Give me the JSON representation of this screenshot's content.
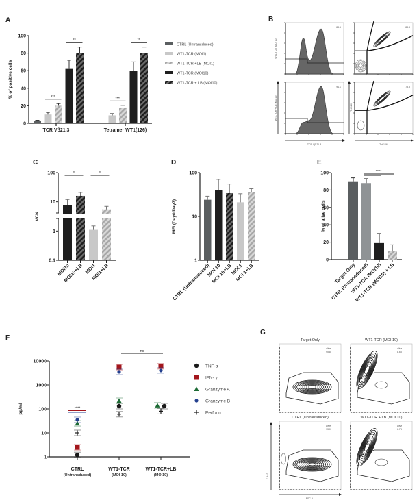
{
  "panels": {
    "A": "A",
    "B": "B",
    "C": "C",
    "D": "D",
    "E": "E",
    "F": "F",
    "G": "G"
  },
  "colors": {
    "ctrl": "#5a5e60",
    "moi1": "#c8c8c8",
    "moi1lb": "#b4b4b4",
    "moi10": "#1e1e1e",
    "tnf": "#1a1a1a",
    "ifn": "#a3161c",
    "gzma": "#1d6b35",
    "gzmb": "#24408f",
    "perforin": "#1a1a1a",
    "gray_e": "#8f9395"
  },
  "chart_data": [
    {
      "id": "A",
      "type": "bar",
      "ylabel": "% of positive cells",
      "ylim": [
        0,
        100
      ],
      "yticks": [
        0,
        20,
        40,
        60,
        80,
        100
      ],
      "categories": [
        "TCR Vβ21.3",
        "Tetramer WT1(126)"
      ],
      "legend": [
        "CTRL (Untransduced)",
        "WT1-TCR (MOI1)",
        "WT1-TCR +LB (MOI1)",
        "WT1-TCR (MOI10)",
        "WT1-TCR + LB (MOI10)"
      ],
      "legend_position": "right",
      "series": [
        {
          "name": "CTRL (Untransduced)",
          "values": [
            3,
            null
          ],
          "errors": [
            0.5,
            null
          ],
          "style": "ctrl"
        },
        {
          "name": "WT1-TCR (MOI1)",
          "values": [
            10,
            9
          ],
          "errors": [
            2.5,
            2
          ],
          "style": "moi1"
        },
        {
          "name": "WT1-TCR +LB (MOI1)",
          "values": [
            20,
            18
          ],
          "errors": [
            2.5,
            2.5
          ],
          "style": "moi1lb-hatch"
        },
        {
          "name": "WT1-TCR (MOI10)",
          "values": [
            62,
            60
          ],
          "errors": [
            10,
            10
          ],
          "style": "moi10"
        },
        {
          "name": "WT1-TCR + LB (MOI10)",
          "values": [
            80,
            80
          ],
          "errors": [
            7,
            7
          ],
          "style": "moi10-hatch"
        }
      ],
      "annotations": [
        {
          "group": 0,
          "between": [
            1,
            2
          ],
          "text": "***"
        },
        {
          "group": 0,
          "between": [
            3,
            4
          ],
          "text": "**"
        },
        {
          "group": 1,
          "between": [
            1,
            2
          ],
          "text": "***"
        },
        {
          "group": 1,
          "between": [
            3,
            4
          ],
          "text": "**"
        }
      ]
    },
    {
      "id": "C",
      "type": "bar",
      "ylabel": "VCN",
      "yscale": "log",
      "ylim": [
        0.1,
        100
      ],
      "yticks": [
        "0.1",
        "1",
        "10",
        "100"
      ],
      "axis_break": true,
      "categories": [
        "MOI10",
        "MOI10+LB",
        "MOI1",
        "MOI1+LB"
      ],
      "values": [
        7.5,
        16,
        1.1,
        5.5
      ],
      "errors_upper": [
        12,
        21,
        1.5,
        7
      ],
      "styles": [
        "moi10",
        "moi10-hatch",
        "moi1",
        "moi1lb-hatch"
      ],
      "annotations": [
        {
          "between": [
            0,
            1
          ],
          "text": "*"
        },
        {
          "between": [
            2,
            3
          ],
          "text": "*"
        }
      ]
    },
    {
      "id": "D",
      "type": "bar",
      "ylabel": "MFI (Day0/Day7)",
      "yscale": "log",
      "ylim": [
        1,
        100
      ],
      "yticks": [
        "1",
        "10",
        "100"
      ],
      "categories": [
        "CTRL (Untransduced)",
        "MOI 10",
        "MOI 10+LB",
        "MOI 1",
        "MOI 1+LB"
      ],
      "values": [
        24,
        40,
        34,
        21,
        36
      ],
      "errors_upper": [
        29,
        70,
        55,
        33,
        43
      ],
      "styles": [
        "ctrl",
        "moi10",
        "moi10-hatch",
        "moi1",
        "moi1lb-hatch"
      ]
    },
    {
      "id": "E",
      "type": "bar",
      "ylabel": "% of alive cells",
      "ylim": [
        0,
        100
      ],
      "yticks": [
        0,
        20,
        40,
        60,
        80,
        100
      ],
      "categories": [
        "Target Only",
        "CTRL (Untransduced)",
        "WT1-TCR (MOI10)",
        "WT1-TCR (MOI10) + LB"
      ],
      "values": [
        90,
        88,
        19,
        10
      ],
      "errors": [
        4,
        5,
        11,
        7
      ],
      "styles": [
        "ctrl",
        "gray",
        "moi10",
        "moi1lb-hatch"
      ],
      "annotations": [
        {
          "between": [
            1,
            3
          ],
          "text": "****"
        }
      ]
    },
    {
      "id": "F",
      "type": "scatter",
      "ylabel": "pg/ml",
      "yscale": "log",
      "ylim": [
        1,
        10000
      ],
      "yticks": [
        "1",
        "10",
        "100",
        "1000",
        "10000"
      ],
      "categories": [
        {
          "line1": "CTRL",
          "line2": "(Untransduced)"
        },
        {
          "line1": "WT1-TCR",
          "line2": "(MOI 10)"
        },
        {
          "line1": "WT1-TCR+LB",
          "line2": "(MOI10)"
        }
      ],
      "legend_position": "right",
      "series": [
        {
          "name": "TNF-α",
          "marker": "circle",
          "color_key": "tnf",
          "values": [
            1.2,
            130,
            130
          ]
        },
        {
          "name": "IFN- γ",
          "marker": "square",
          "color_key": "ifn",
          "values": [
            2.5,
            5500,
            6000
          ]
        },
        {
          "name": "Granzyme A",
          "marker": "triangle",
          "color_key": "gzma",
          "values": [
            25,
            220,
            140
          ]
        },
        {
          "name": "Granzyme B",
          "marker": "circle-small",
          "color_key": "gzmb",
          "values": [
            35,
            3500,
            4000
          ]
        },
        {
          "name": "Perforin",
          "marker": "plus",
          "color_key": "perforin",
          "values": [
            10,
            60,
            80
          ]
        }
      ],
      "annotations": [
        {
          "group": 0,
          "text": "****"
        },
        {
          "between": [
            1,
            2
          ],
          "text": "ns"
        }
      ]
    }
  ],
  "flow_B": {
    "row_labels": [
      "WT1-TCR (MOI 10)",
      "WT1-TCR + LB (MOI10)"
    ],
    "hist_xlabel": "TCR Vβ 21.3",
    "contour_xlabel": "Tet-126",
    "contour_ylabel": "Tet-126",
    "hist_values": [
      "88.5",
      "91.1"
    ],
    "contour_values": [
      "88.3",
      "78.8"
    ]
  },
  "flow_G": {
    "titles": [
      "Target Only",
      "WT1-TCR (MOI 10)",
      "CTRL (Untransduced)",
      "WT1-TCR + LB (MOI 10)"
    ],
    "gate_label": "alive",
    "values": [
      "95.8",
      "8.68",
      "93.0",
      "6.74"
    ],
    "xlabel": "FSC-A",
    "ylabel": "7-AAD"
  }
}
